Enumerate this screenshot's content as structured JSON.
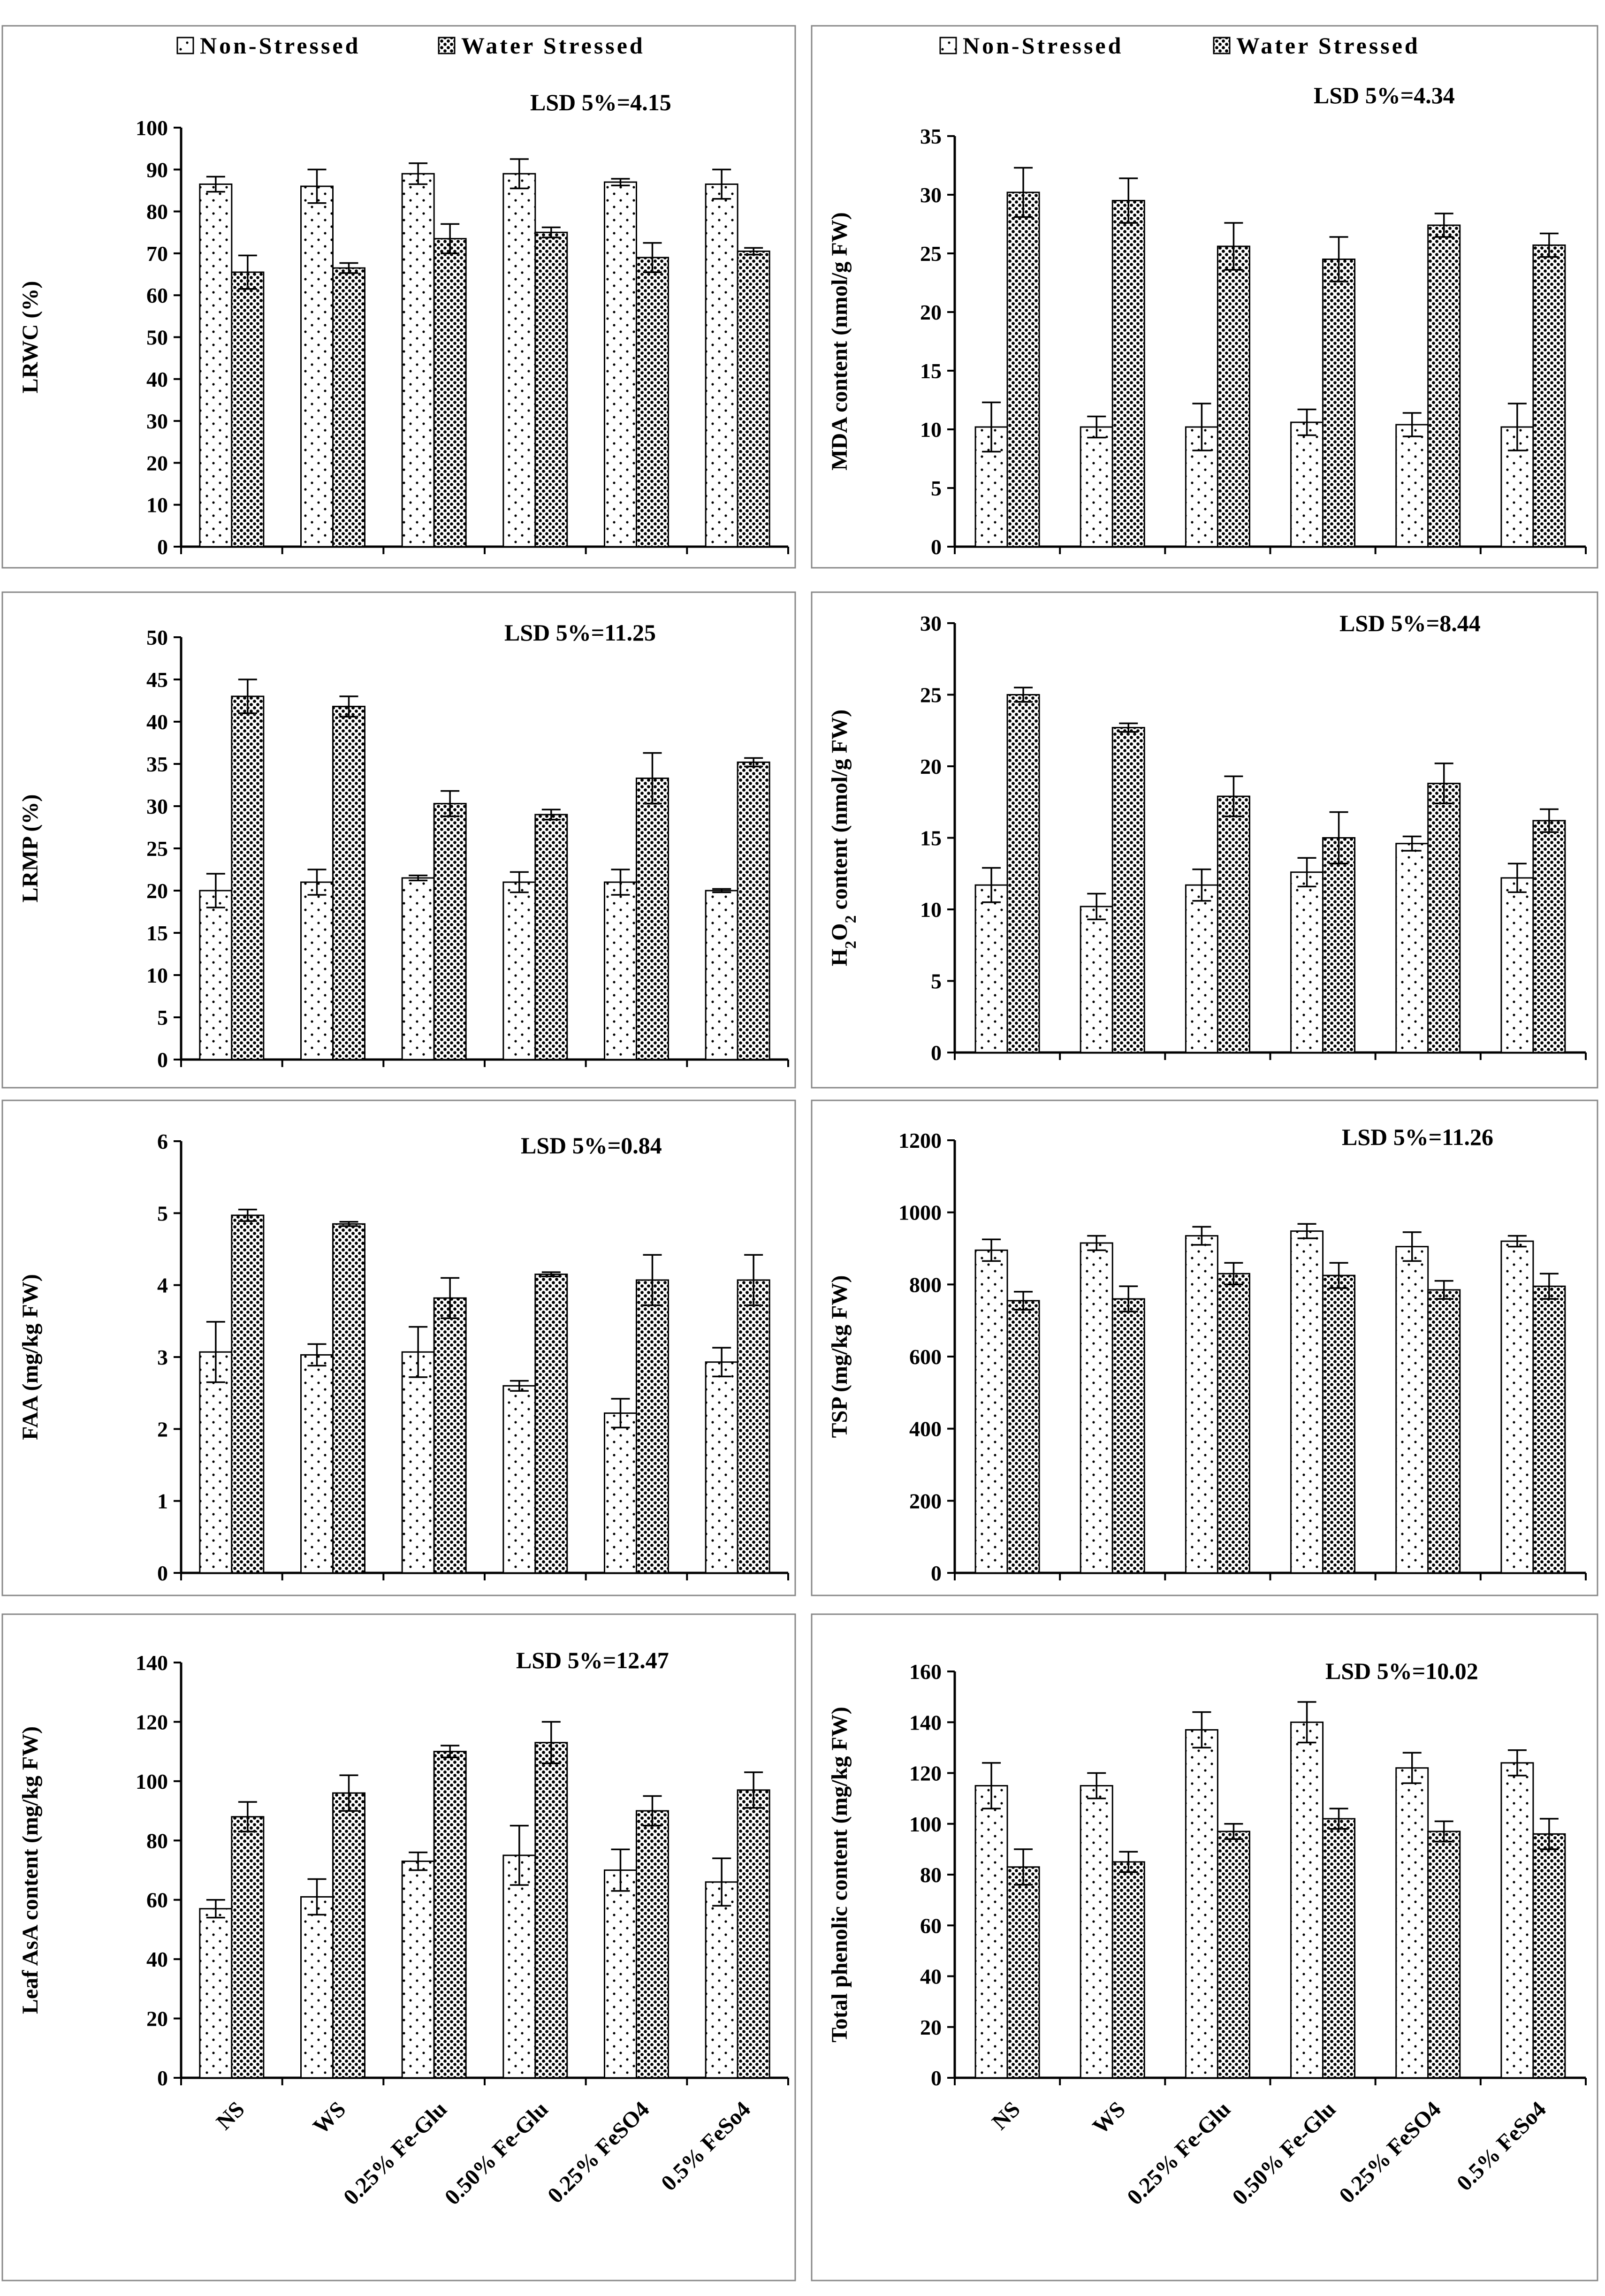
{
  "legend": {
    "non_stressed": "Non-Stressed",
    "water_stressed": "Water Stressed"
  },
  "colors": {
    "non_stressed_bg": "#ffffff",
    "dots": "#000000",
    "water_stressed_bg": "#ffffff",
    "panel_border": "#888888"
  },
  "chart_data": [
    {
      "type": "bar",
      "ylabel": "LRWC (%)",
      "annotation": "LSD 5%=4.15",
      "categories": [
        "NS",
        "WS",
        "0.25% Fe-Glu",
        "0.50% Fe-Glu",
        "0.25% FeSO4",
        "0.5% FeSo4"
      ],
      "ylim": [
        0,
        100
      ],
      "yticks": [
        0,
        10,
        20,
        30,
        40,
        50,
        60,
        70,
        80,
        90,
        100
      ],
      "series": [
        {
          "name": "Non-Stressed",
          "values": [
            86.5,
            86,
            89,
            89,
            87,
            86.5
          ],
          "errors": [
            1.8,
            4,
            2.5,
            3.5,
            0.8,
            3.5
          ]
        },
        {
          "name": "Water Stressed",
          "values": [
            65.5,
            66.5,
            73.5,
            75,
            69,
            70.5
          ],
          "errors": [
            4,
            1.2,
            3.5,
            1.2,
            3.5,
            0.8
          ]
        }
      ]
    },
    {
      "type": "bar",
      "ylabel": "MDA content (nmol/g FW)",
      "annotation": "LSD 5%=4.34",
      "categories": [
        "NS",
        "WS",
        "0.25% Fe-Glu",
        "0.50% Fe-Glu",
        "0.25% FeSO4",
        "0.5% FeSo4"
      ],
      "ylim": [
        0,
        35
      ],
      "yticks": [
        0,
        5,
        10,
        15,
        20,
        25,
        30,
        35
      ],
      "series": [
        {
          "name": "Non-Stressed",
          "values": [
            10.2,
            10.2,
            10.2,
            10.6,
            10.4,
            10.2
          ],
          "errors": [
            2.1,
            0.9,
            2,
            1.1,
            1,
            2
          ]
        },
        {
          "name": "Water Stressed",
          "values": [
            30.2,
            29.5,
            25.6,
            24.5,
            27.4,
            25.7
          ],
          "errors": [
            2.1,
            1.9,
            2,
            1.9,
            1,
            1
          ]
        }
      ]
    },
    {
      "type": "bar",
      "ylabel": "LRMP (%)",
      "annotation": "LSD 5%=11.25",
      "categories": [
        "NS",
        "WS",
        "0.25% Fe-Glu",
        "0.50% Fe-Glu",
        "0.25% FeSO4",
        "0.5% FeSo4"
      ],
      "ylim": [
        0,
        50
      ],
      "yticks": [
        0,
        5,
        10,
        15,
        20,
        25,
        30,
        35,
        40,
        45,
        50
      ],
      "series": [
        {
          "name": "Non-Stressed",
          "values": [
            20,
            21,
            21.5,
            21,
            21,
            20
          ],
          "errors": [
            2,
            1.5,
            0.3,
            1.2,
            1.5,
            0.2
          ]
        },
        {
          "name": "Water Stressed",
          "values": [
            43,
            41.8,
            30.3,
            29,
            33.3,
            35.2
          ],
          "errors": [
            2,
            1.2,
            1.5,
            0.6,
            3,
            0.5
          ]
        }
      ]
    },
    {
      "type": "bar",
      "ylabel": "H2O2 content (nmol/g FW)",
      "ylabel_rich": [
        {
          "t": "H",
          "sub": false
        },
        {
          "t": "2",
          "sub": true
        },
        {
          "t": "O",
          "sub": false
        },
        {
          "t": "2",
          "sub": true
        },
        {
          "t": " content (nmol/g FW)",
          "sub": false
        }
      ],
      "annotation": "LSD 5%=8.44",
      "categories": [
        "NS",
        "WS",
        "0.25% Fe-Glu",
        "0.50% Fe-Glu",
        "0.25% FeSO4",
        "0.5% FeSo4"
      ],
      "ylim": [
        0,
        30
      ],
      "yticks": [
        0,
        5,
        10,
        15,
        20,
        25,
        30
      ],
      "series": [
        {
          "name": "Non-Stressed",
          "values": [
            11.7,
            10.2,
            11.7,
            12.6,
            14.6,
            12.2
          ],
          "errors": [
            1.2,
            0.9,
            1.1,
            1,
            0.5,
            1
          ]
        },
        {
          "name": "Water Stressed",
          "values": [
            25,
            22.7,
            17.9,
            15,
            18.8,
            16.2
          ],
          "errors": [
            0.5,
            0.3,
            1.4,
            1.8,
            1.4,
            0.8
          ]
        }
      ]
    },
    {
      "type": "bar",
      "ylabel": "FAA (mg/kg FW)",
      "annotation": "LSD 5%=0.84",
      "categories": [
        "NS",
        "WS",
        "0.25% Fe-Glu",
        "0.50% Fe-Glu",
        "0.25% FeSO4",
        "0.5% FeSo4"
      ],
      "ylim": [
        0,
        6
      ],
      "yticks": [
        0,
        1,
        2,
        3,
        4,
        5,
        6
      ],
      "series": [
        {
          "name": "Non-Stressed",
          "values": [
            3.07,
            3.03,
            3.07,
            2.6,
            2.22,
            2.93
          ],
          "errors": [
            0.42,
            0.15,
            0.35,
            0.07,
            0.2,
            0.2
          ]
        },
        {
          "name": "Water Stressed",
          "values": [
            4.97,
            4.85,
            3.82,
            4.15,
            4.07,
            4.07
          ],
          "errors": [
            0.08,
            0.03,
            0.28,
            0.03,
            0.35,
            0.35
          ]
        }
      ]
    },
    {
      "type": "bar",
      "ylabel": "TSP (mg/kg FW)",
      "annotation": "LSD 5%=11.26",
      "categories": [
        "NS",
        "WS",
        "0.25% Fe-Glu",
        "0.50% Fe-Glu",
        "0.25% FeSO4",
        "0.5% FeSo4"
      ],
      "ylim": [
        0,
        1200
      ],
      "yticks": [
        0,
        200,
        400,
        600,
        800,
        1000,
        1200
      ],
      "series": [
        {
          "name": "Non-Stressed",
          "values": [
            895,
            915,
            935,
            948,
            905,
            920
          ],
          "errors": [
            30,
            20,
            25,
            20,
            40,
            15
          ]
        },
        {
          "name": "Water Stressed",
          "values": [
            755,
            760,
            830,
            825,
            785,
            795
          ],
          "errors": [
            25,
            35,
            30,
            35,
            25,
            35
          ]
        }
      ]
    },
    {
      "type": "bar",
      "ylabel": "Leaf AsA content (mg/kg FW)",
      "annotation": "LSD 5%=12.47",
      "categories": [
        "NS",
        "WS",
        "0.25% Fe-Glu",
        "0.50% Fe-Glu",
        "0.25% FeSO4",
        "0.5% FeSo4"
      ],
      "ylim": [
        0,
        140
      ],
      "yticks": [
        0,
        20,
        40,
        60,
        80,
        100,
        120,
        140
      ],
      "series": [
        {
          "name": "Non-Stressed",
          "values": [
            57,
            61,
            73,
            75,
            70,
            66
          ],
          "errors": [
            3,
            6,
            3,
            10,
            7,
            8
          ]
        },
        {
          "name": "Water Stressed",
          "values": [
            88,
            96,
            110,
            113,
            90,
            97
          ],
          "errors": [
            5,
            6,
            2,
            7,
            5,
            6
          ]
        }
      ]
    },
    {
      "type": "bar",
      "ylabel": "Total phenolic content (mg/kg FW)",
      "annotation": "LSD 5%=10.02",
      "categories": [
        "NS",
        "WS",
        "0.25% Fe-Glu",
        "0.50% Fe-Glu",
        "0.25% FeSO4",
        "0.5% FeSo4"
      ],
      "ylim": [
        0,
        160
      ],
      "yticks": [
        0,
        20,
        40,
        60,
        80,
        100,
        120,
        140,
        160
      ],
      "series": [
        {
          "name": "Non-Stressed",
          "values": [
            115,
            115,
            137,
            140,
            122,
            124
          ],
          "errors": [
            9,
            5,
            7,
            8,
            6,
            5
          ]
        },
        {
          "name": "Water Stressed",
          "values": [
            83,
            85,
            97,
            102,
            97,
            96
          ],
          "errors": [
            7,
            4,
            3,
            4,
            4,
            6
          ]
        }
      ]
    }
  ]
}
